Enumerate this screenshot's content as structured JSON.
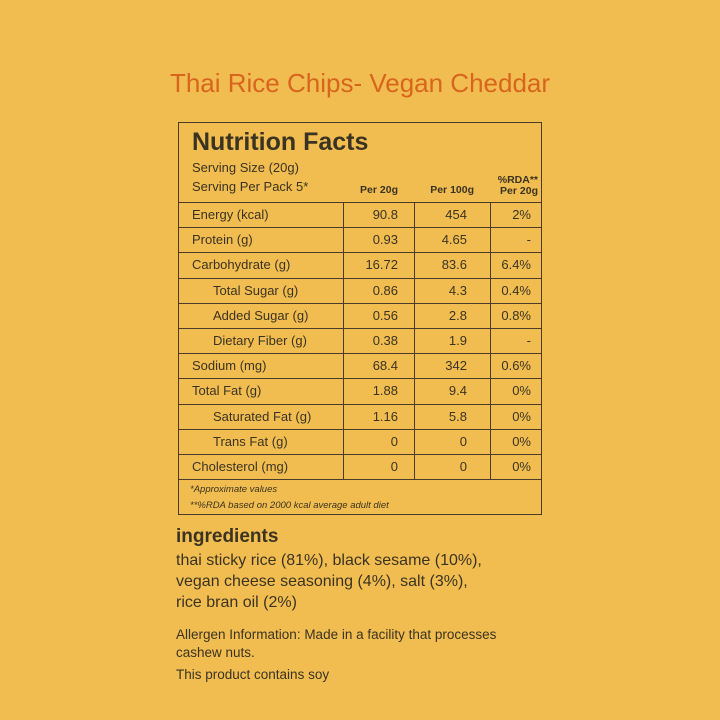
{
  "header": {
    "title": "Thai Rice Chips- Vegan Cheddar"
  },
  "nutrition": {
    "title": "Nutrition Facts",
    "serving_size": "Serving Size (20g)",
    "serving_per_pack": "Serving Per Pack 5*",
    "columns": [
      "Per 20g",
      "Per 100g",
      "%RDA**",
      "Per 20g"
    ],
    "rows": [
      [
        "Energy (kcal)",
        "90.8",
        "454",
        "2%"
      ],
      [
        "Protein (g)",
        "0.93",
        "4.65",
        "-"
      ],
      [
        "Carbohydrate (g)",
        "16.72",
        "83.6",
        "6.4%"
      ],
      [
        "Total Sugar (g)",
        "0.86",
        "4.3",
        "0.4%"
      ],
      [
        "Added Sugar (g)",
        "0.56",
        "2.8",
        "0.8%"
      ],
      [
        "Dietary Fiber (g)",
        "0.38",
        "1.9",
        "-"
      ],
      [
        "Sodium (mg)",
        "68.4",
        "342",
        "0.6%"
      ],
      [
        "Total Fat (g)",
        "1.88",
        "9.4",
        "0%"
      ],
      [
        "Saturated Fat (g)",
        "1.16",
        "5.8",
        "0%"
      ],
      [
        "Trans Fat (g)",
        "0",
        "0",
        "0%"
      ],
      [
        "Cholesterol (mg)",
        "0",
        "0",
        "0%"
      ]
    ],
    "footnotes": [
      "*Approximate values",
      "**%RDA based on 2000 kcal average adult diet"
    ]
  },
  "ingredients": {
    "title": "ingredients",
    "lines": [
      "thai sticky rice (81%), black sesame (10%),",
      "vegan cheese seasoning (4%), salt (3%),",
      "rice bran oil (2%)"
    ]
  },
  "allergen": {
    "lines": [
      "Allergen Information: Made in a facility that processes",
      "cashew nuts."
    ],
    "note": "This product contains soy"
  }
}
